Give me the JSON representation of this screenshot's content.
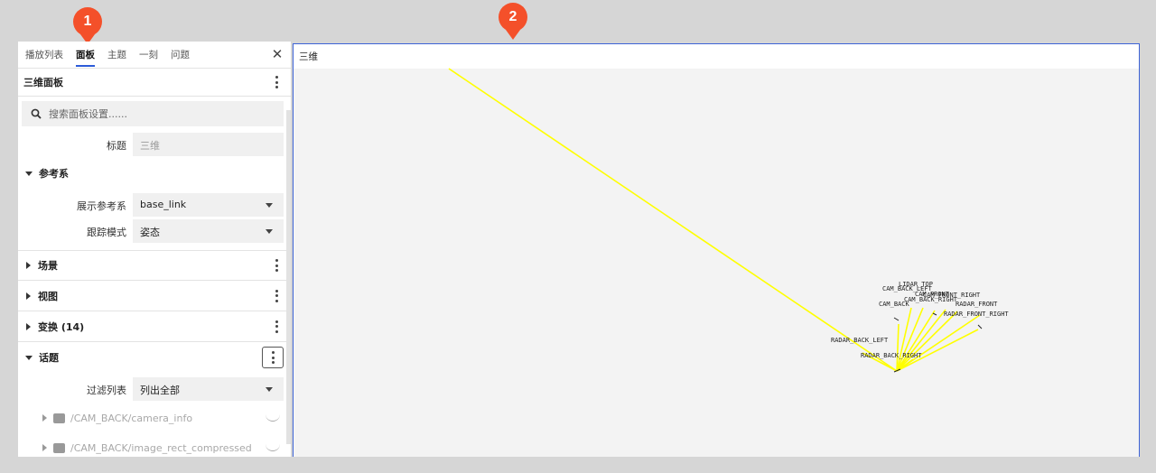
{
  "badges": [
    "1",
    "2"
  ],
  "tabs": [
    {
      "label": "播放列表"
    },
    {
      "label": "面板",
      "active": true
    },
    {
      "label": "主题"
    },
    {
      "label": "一刻"
    },
    {
      "label": "问题"
    }
  ],
  "panel": {
    "title": "三维面板"
  },
  "search": {
    "placeholder": "搜索面板设置......"
  },
  "fields": {
    "title_label": "标题",
    "title_value": "三维"
  },
  "frame_section": {
    "label": "参考系",
    "display_frame_label": "展示参考系",
    "display_frame_value": "base_link",
    "follow_mode_label": "跟踪模式",
    "follow_mode_value": "姿态"
  },
  "sections": {
    "scene": "场景",
    "view": "视图",
    "transforms": "变换 (14)",
    "topics": "话题"
  },
  "topics": {
    "filter_label": "过滤列表",
    "filter_value": "列出全部",
    "items": [
      "/CAM_BACK/camera_info",
      "/CAM_BACK/image_rect_compressed"
    ]
  },
  "viewport": {
    "title": "三维",
    "frame_labels": [
      "LIDAR_TOP",
      "CAM_BACK_LEFT",
      "CAM_FRONT",
      "CAM_FRONT_RIGHT",
      "CAM_BACK_RIGHT",
      "CAM_BACK",
      "RADAR_FRONT",
      "RADAR_FRONT_RIGHT",
      "RADAR_BACK_LEFT",
      "RADAR_BACK_RIGHT"
    ],
    "line_color": "#ffff00"
  },
  "colors": {
    "badge": "#f4502a",
    "accent": "#2d5bd8",
    "viewport_border": "#3d63d6"
  }
}
